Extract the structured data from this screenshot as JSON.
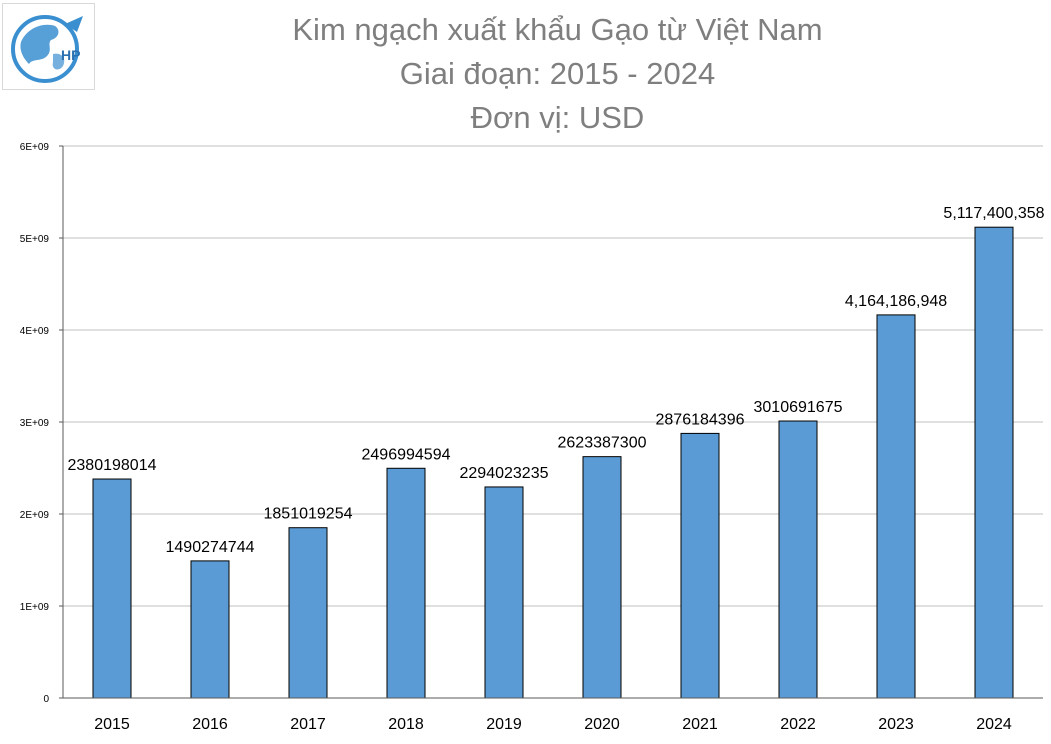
{
  "logo": {
    "text": "HP"
  },
  "title_lines": [
    "Kim ngạch xuất khẩu Gạo từ Việt Nam",
    "Giai đoạn: 2015 - 2024",
    "Đơn vị: USD"
  ],
  "chart_data": {
    "type": "bar",
    "title": "Kim ngạch xuất khẩu Gạo từ Việt Nam",
    "subtitle": "Giai đoạn: 2015 - 2024",
    "unit": "Đơn vị: USD",
    "xlabel": "",
    "ylabel": "",
    "categories": [
      "2015",
      "2016",
      "2017",
      "2018",
      "2019",
      "2020",
      "2021",
      "2022",
      "2023",
      "2024"
    ],
    "values": [
      2380198014,
      1490274744,
      1851019254,
      2496994594,
      2294023235,
      2623387300,
      2876184396,
      3010691675,
      4164186948,
      5117400358
    ],
    "data_labels": [
      "2380198014",
      "1490274744",
      "1851019254",
      "2496994594",
      "2294023235",
      "2623387300",
      "2876184396",
      "3010691675",
      "4,164,186,948",
      "5,117,400,358"
    ],
    "ylim": [
      0,
      6000000000
    ],
    "yticks": [
      0,
      1000000000,
      2000000000,
      3000000000,
      4000000000,
      5000000000,
      6000000000
    ],
    "ytick_labels": [
      "0",
      "1E+09",
      "2E+09",
      "3E+09",
      "4E+09",
      "5E+09",
      "6E+09"
    ],
    "grid": true,
    "bar_color": "#5b9bd5",
    "bar_edge_color": "#000000",
    "grid_color": "#c0c0c0"
  }
}
